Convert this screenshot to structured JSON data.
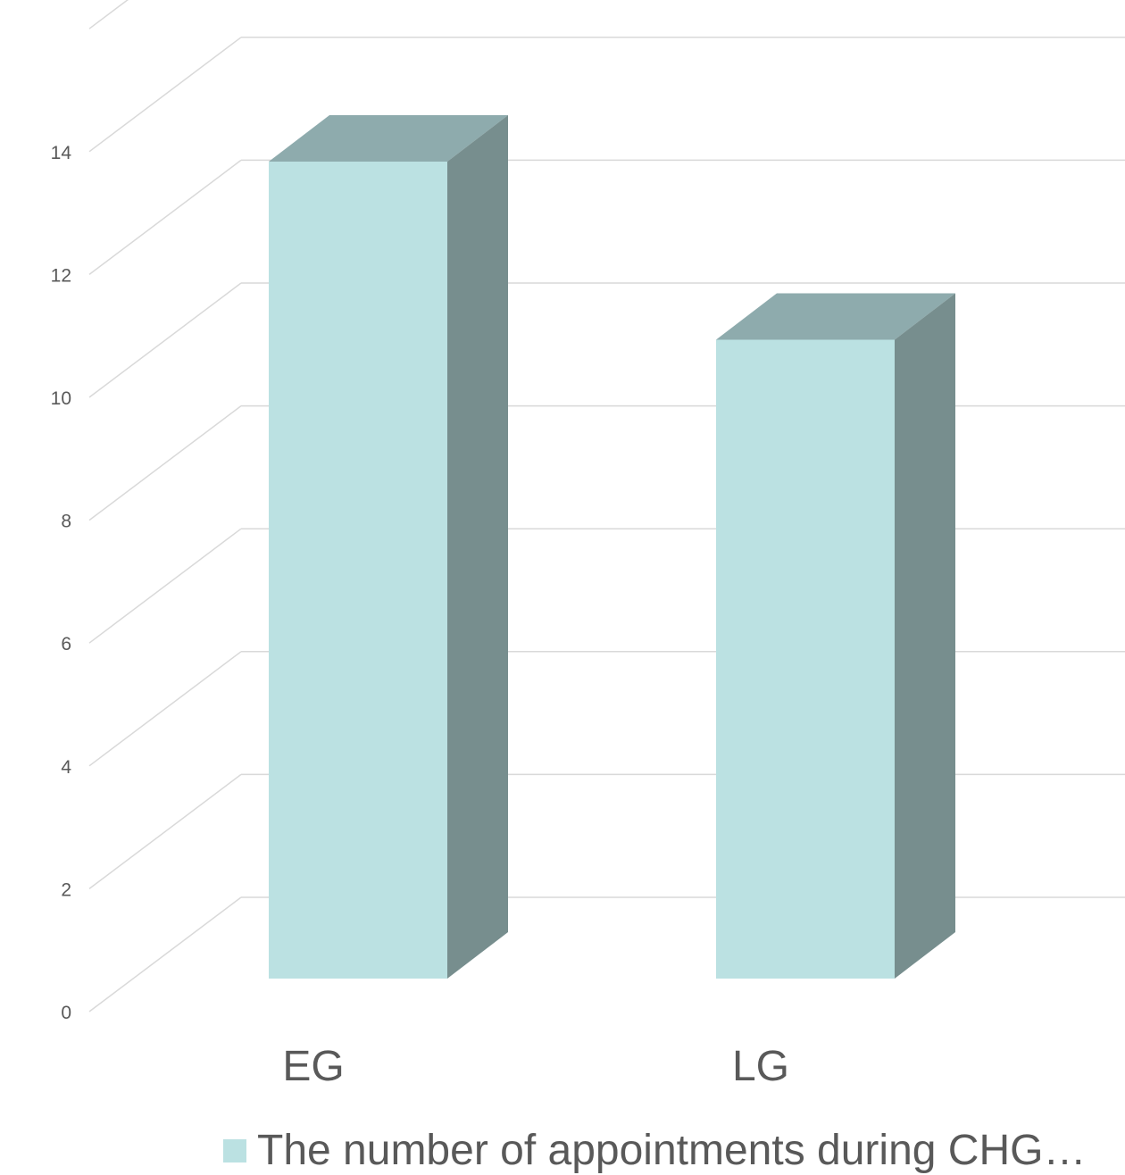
{
  "chart_data": {
    "type": "bar",
    "style": "3d-column",
    "categories": [
      "EG",
      "LG"
    ],
    "series": [
      {
        "name": "The number of appointments during CHG…",
        "values": [
          13.3,
          10.4
        ]
      }
    ],
    "y_ticks": [
      "0",
      "2",
      "4",
      "6",
      "8",
      "10",
      "12",
      "14"
    ],
    "ylim": [
      0,
      16
    ],
    "grid": true,
    "legend_position": "bottom",
    "colors": {
      "front": "#bbe1e2",
      "top": "#8eabad",
      "side": "#778e8e",
      "grid": "#d9d9d9",
      "text": "#595959"
    }
  }
}
